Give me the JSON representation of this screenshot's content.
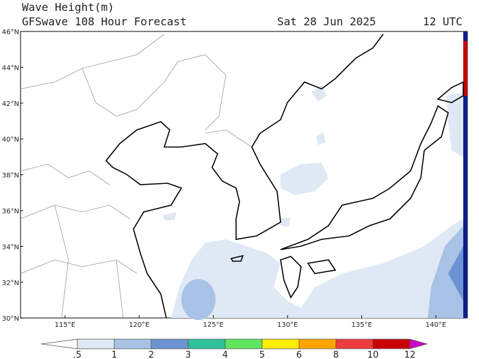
{
  "header": {
    "title": "Wave Height(m)",
    "subtitle": "GFSwave 108 Hour Forecast",
    "date": "Sat 28 Jun 2025",
    "time": "12 UTC"
  },
  "lat_labels": [
    "46°N",
    "44°N",
    "42°N",
    "40°N",
    "38°N",
    "36°N",
    "34°N",
    "32°N",
    "30°N"
  ],
  "lon_labels": [
    "115°E",
    "120°E",
    "125°E",
    "130°E",
    "135°E",
    "140°E"
  ],
  "colorbar": {
    "ticks": [
      ".5",
      "1",
      "2",
      "3",
      "4",
      "5",
      "6",
      "8",
      "10",
      "12"
    ],
    "under_color": "#ffffff",
    "colors": [
      "#dfe9f5",
      "#a9c3e6",
      "#6d93d3",
      "#2ec39a",
      "#5ee65e",
      "#ffee00",
      "#ffa500",
      "#ee3b3b",
      "#c80000"
    ],
    "over_color": "#cc00cc"
  }
}
